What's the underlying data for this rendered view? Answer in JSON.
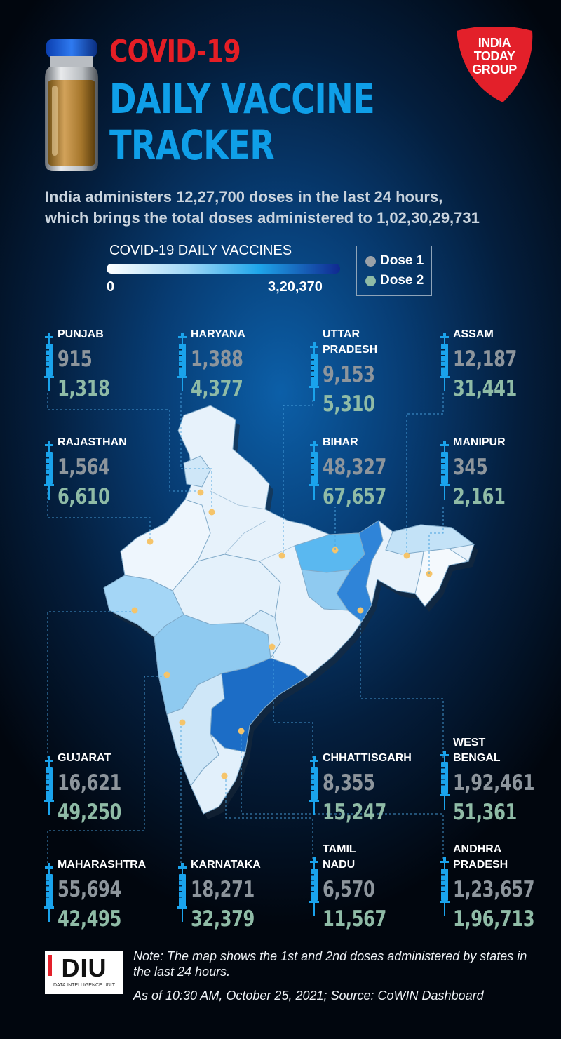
{
  "header": {
    "title_line1": "COVID-19",
    "title_line2": "DAILY VACCINE",
    "title_line3": "TRACKER",
    "subtitle_line1": "India administers 12,27,700 doses in the last 24 hours,",
    "subtitle_line2": "which brings the total doses administered to 1,02,30,29,731"
  },
  "logo": {
    "line1": "INDIA",
    "line2": "TODAY",
    "line3": "GROUP"
  },
  "legend": {
    "title": "COVID-19 DAILY VACCINES",
    "min": "0",
    "max": "3,20,370",
    "dose1_label": "Dose 1",
    "dose2_label": "Dose 2",
    "dose1_color": "#9aa1a8",
    "dose2_color": "#8fbba6"
  },
  "states": [
    {
      "name": "PUNJAB",
      "dose1": "915",
      "dose2": "1,318"
    },
    {
      "name": "HARYANA",
      "dose1": "1,388",
      "dose2": "4,377"
    },
    {
      "name": "UTTAR\nPRADESH",
      "dose1": "9,153",
      "dose2": "5,310"
    },
    {
      "name": "ASSAM",
      "dose1": "12,187",
      "dose2": "31,441"
    },
    {
      "name": "RAJASTHAN",
      "dose1": "1,564",
      "dose2": "6,610"
    },
    {
      "name": "BIHAR",
      "dose1": "48,327",
      "dose2": "67,657"
    },
    {
      "name": "MANIPUR",
      "dose1": "345",
      "dose2": "2,161"
    },
    {
      "name": "GUJARAT",
      "dose1": "16,621",
      "dose2": "49,250"
    },
    {
      "name": "CHHATTISGARH",
      "dose1": "8,355",
      "dose2": "15,247"
    },
    {
      "name": "WEST\nBENGAL",
      "dose1": "1,92,461",
      "dose2": "51,361"
    },
    {
      "name": "MAHARASHTRA",
      "dose1": "55,694",
      "dose2": "42,495"
    },
    {
      "name": "KARNATAKA",
      "dose1": "18,271",
      "dose2": "32,379"
    },
    {
      "name": "TAMIL\nNADU",
      "dose1": "6,570",
      "dose2": "11,567"
    },
    {
      "name": "ANDHRA\nPRADESH",
      "dose1": "1,23,657",
      "dose2": "1,96,713"
    }
  ],
  "footer": {
    "diu_logo": "DIU",
    "diu_sub": "DATA INTELLIGENCE UNIT",
    "note": "Note: The map shows the 1st and 2nd doses administered by states in the last 24 hours.",
    "as_of": "As of 10:30 AM, October 25, 2021; Source: CoWIN Dashboard"
  },
  "colors": {
    "title_red": "#e51e25",
    "title_blue": "#0f9fe8",
    "syringe": "#1aa3ec",
    "marker": "#f5c46a"
  }
}
